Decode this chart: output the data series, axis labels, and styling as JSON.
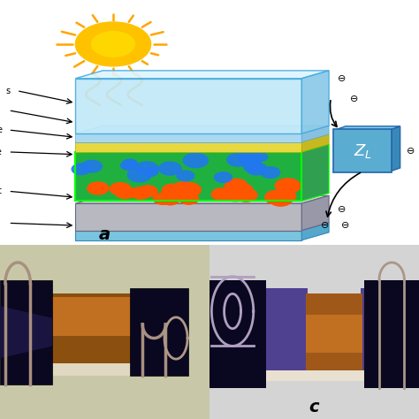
{
  "bg_color": "#ffffff",
  "panel_a_label": "a",
  "panel_c_label": "c",
  "sun_color": "#FFD700",
  "sun_gradient_inner": "#FFEE44",
  "sun_glow": "#FFA500",
  "glass_top_face": "#C5E8F8",
  "glass_top_side": "#88C8E8",
  "glass_top_top": "#E0F4FF",
  "active_green": "#22BB44",
  "active_orange": "#FF5500",
  "active_blue": "#3399FF",
  "zl_box_color": "#5BA8D8",
  "zl_text": "white",
  "arrow_color": "#000000",
  "minus_symbol": "⊖",
  "bottom_glass_face": "#90C8E0",
  "bottom_glass_top": "#B8DCF0",
  "bottom_plate_face": "#C0C0C8",
  "bottom_plate_top": "#D8D8E0",
  "photo_b_bg": "#C8C8B0",
  "photo_b_device": "#A06820",
  "photo_b_clip_dark": "#151030",
  "photo_b_clip_purple": "#2A2060",
  "photo_b_wire": "#A09090",
  "photo_c_bg": "#D0D0D0",
  "photo_c_device_orange": "#A06020",
  "photo_c_device_purple": "#403880",
  "photo_c_clip": "#151030"
}
